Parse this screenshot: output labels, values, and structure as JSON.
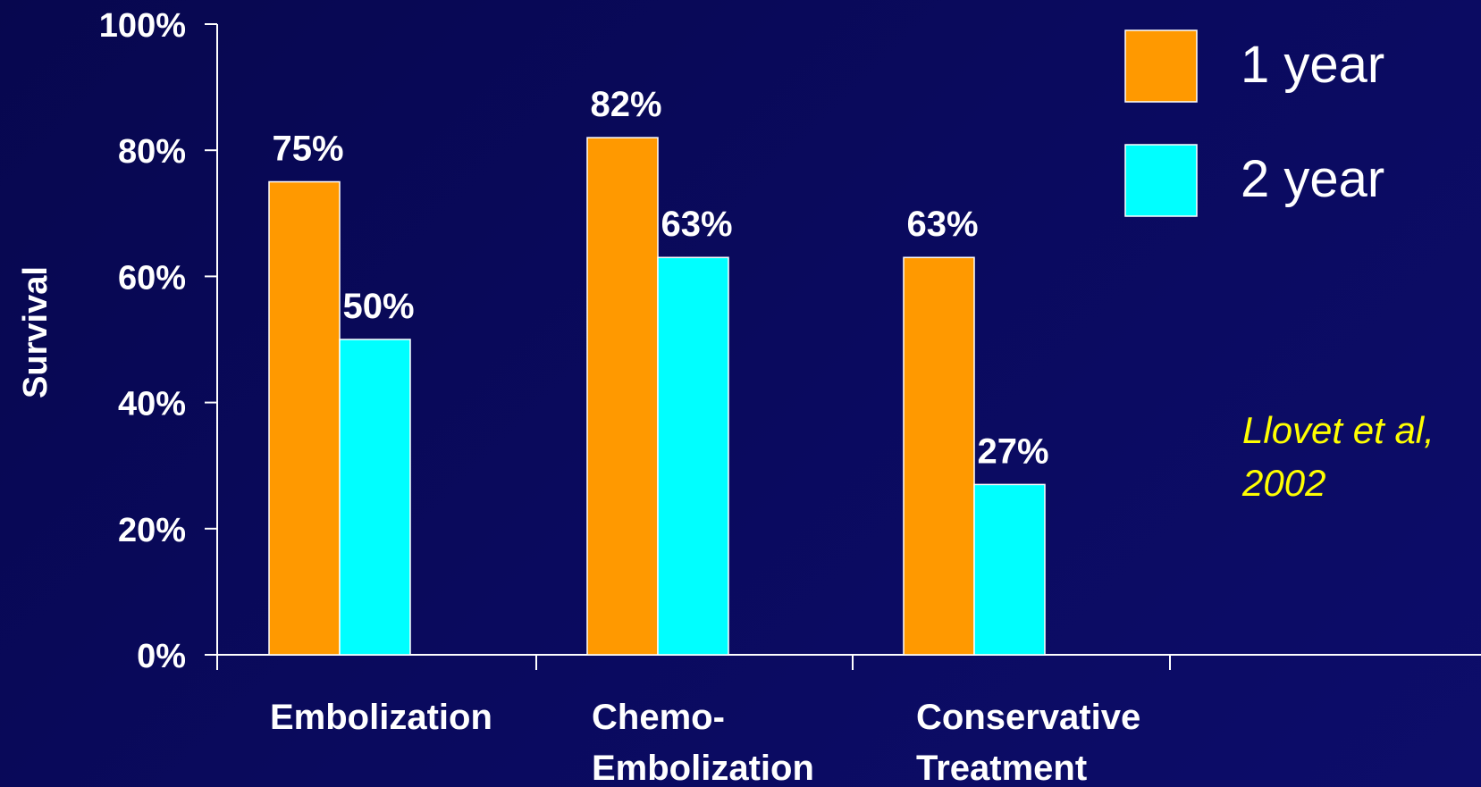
{
  "colors": {
    "background": "#0a0a5c",
    "series_1": "#ff9900",
    "series_2": "#00ffff",
    "axis": "#ffffff",
    "text": "#ffffff",
    "citation": "#ffff00"
  },
  "citation": {
    "line1": "Llovet et al,",
    "line2": "2002"
  },
  "chart_data": {
    "type": "bar",
    "title": "",
    "xlabel": "",
    "ylabel": "Survival",
    "ylim": [
      0,
      100
    ],
    "yticks": [
      "0%",
      "20%",
      "40%",
      "60%",
      "80%",
      "100%"
    ],
    "categories": [
      [
        "Embolization"
      ],
      [
        "Chemo-",
        "Embolization"
      ],
      [
        "Conservative",
        "Treatment"
      ]
    ],
    "series": [
      {
        "name": "1 year",
        "values": [
          75,
          82,
          63
        ],
        "labels": [
          "75%",
          "82%",
          "63%"
        ]
      },
      {
        "name": "2 year",
        "values": [
          50,
          63,
          27
        ],
        "labels": [
          "50%",
          "63%",
          "27%"
        ]
      }
    ],
    "grid": false,
    "legend": "top-right"
  }
}
